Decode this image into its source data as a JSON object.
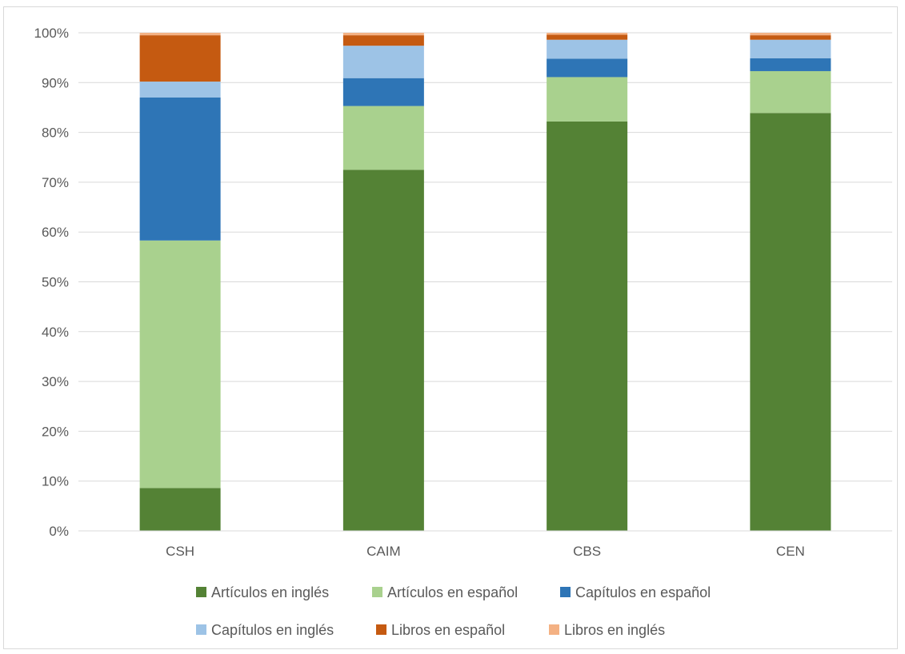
{
  "chart_data": {
    "type": "bar",
    "stacked": true,
    "normalized": true,
    "categories": [
      "CSH",
      "CAIM",
      "CBS",
      "CEN"
    ],
    "series": [
      {
        "name": "Artículos en inglés",
        "color": "#548235",
        "values": [
          8.6,
          72.5,
          82.2,
          83.9
        ]
      },
      {
        "name": "Artículos en español",
        "color": "#a9d18e",
        "values": [
          49.7,
          12.8,
          8.9,
          8.4
        ]
      },
      {
        "name": "Capítulos en español",
        "color": "#2e75b6",
        "values": [
          28.7,
          5.6,
          3.7,
          2.6
        ]
      },
      {
        "name": "Capítulos en inglés",
        "color": "#9dc3e6",
        "values": [
          3.2,
          6.5,
          3.8,
          3.7
        ]
      },
      {
        "name": "Libros en español",
        "color": "#c55a11",
        "values": [
          9.3,
          2.1,
          1.0,
          0.9
        ]
      },
      {
        "name": "Libros en inglés",
        "color": "#f4b183",
        "values": [
          0.5,
          0.5,
          0.4,
          0.5
        ]
      }
    ],
    "y_ticks": [
      "0%",
      "10%",
      "20%",
      "30%",
      "40%",
      "50%",
      "60%",
      "70%",
      "80%",
      "90%",
      "100%"
    ],
    "ylim": [
      0,
      100
    ],
    "grid": true,
    "legend_position": "bottom",
    "title": "",
    "xlabel": "",
    "ylabel": ""
  }
}
